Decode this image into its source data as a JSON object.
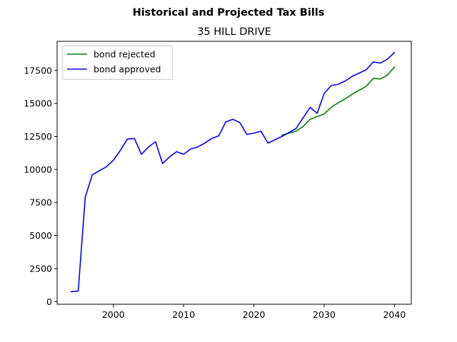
{
  "chart_data": {
    "type": "line",
    "suptitle": "Historical and Projected Tax Bills",
    "title": "35 HILL DRIVE",
    "xlabel": "",
    "ylabel": "",
    "xlim": [
      1992,
      2042.4
    ],
    "ylim": [
      -200,
      19700
    ],
    "xticks": [
      2000,
      2010,
      2020,
      2030,
      2040
    ],
    "yticks": [
      0,
      2500,
      5000,
      7500,
      10000,
      12500,
      15000,
      17500
    ],
    "legend_position": "top-left",
    "grid": false,
    "series": [
      {
        "name": "bond rejected",
        "color": "#008000",
        "x": [
          2024,
          2025,
          2026,
          2027,
          2028,
          2029,
          2030,
          2031,
          2032,
          2033,
          2034,
          2035,
          2036,
          2037,
          2038,
          2039,
          2040
        ],
        "y": [
          12600,
          12750,
          12900,
          13250,
          13800,
          14000,
          14200,
          14700,
          15050,
          15350,
          15700,
          16000,
          16300,
          16900,
          16850,
          17150,
          17750
        ]
      },
      {
        "name": "bond approved",
        "color": "#0000ff",
        "x": [
          1994,
          1995,
          1996,
          1997,
          1998,
          1999,
          2000,
          2001,
          2002,
          2003,
          2004,
          2005,
          2006,
          2007,
          2008,
          2009,
          2010,
          2011,
          2012,
          2013,
          2014,
          2015,
          2016,
          2017,
          2018,
          2019,
          2020,
          2021,
          2022,
          2023,
          2024,
          2025,
          2026,
          2027,
          2028,
          2029,
          2030,
          2031,
          2032,
          2033,
          2034,
          2035,
          2036,
          2037,
          2038,
          2039,
          2040
        ],
        "y": [
          750,
          800,
          7900,
          9600,
          9900,
          10200,
          10700,
          11450,
          12300,
          12350,
          11150,
          11700,
          12100,
          10450,
          10950,
          11350,
          11150,
          11550,
          11700,
          12000,
          12350,
          12550,
          13600,
          13800,
          13550,
          12650,
          12750,
          12900,
          12000,
          12250,
          12500,
          12800,
          13100,
          13900,
          14700,
          14250,
          15750,
          16350,
          16450,
          16700,
          17050,
          17300,
          17550,
          18150,
          18050,
          18350,
          18850
        ]
      }
    ]
  }
}
